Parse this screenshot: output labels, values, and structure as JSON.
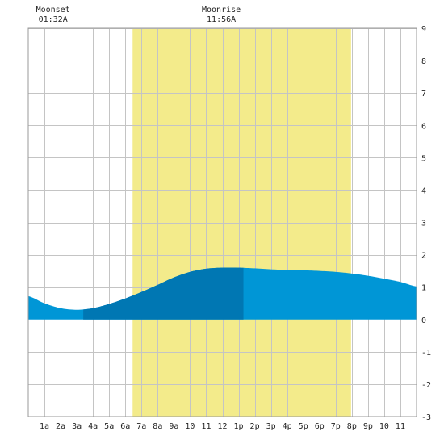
{
  "chart_data": {
    "type": "area",
    "title": "",
    "xlabel": "",
    "ylabel": "",
    "x_unit": "hour of day",
    "xlim": [
      0,
      24
    ],
    "ylim": [
      -3,
      9
    ],
    "grid": true,
    "x_tick_labels": [
      "1a",
      "2a",
      "3a",
      "4a",
      "5a",
      "6a",
      "7a",
      "8a",
      "9a",
      "10",
      "11",
      "12",
      "1p",
      "2p",
      "3p",
      "4p",
      "5p",
      "6p",
      "7p",
      "8p",
      "9p",
      "10",
      "11"
    ],
    "x_tick_values": [
      1,
      2,
      3,
      4,
      5,
      6,
      7,
      8,
      9,
      10,
      11,
      12,
      13,
      14,
      15,
      16,
      17,
      18,
      19,
      20,
      21,
      22,
      23
    ],
    "y_tick_values": [
      -3,
      -2,
      -1,
      0,
      1,
      2,
      3,
      4,
      5,
      6,
      7,
      8,
      9
    ],
    "daylight": {
      "start": 6.45,
      "end": 19.95,
      "color": "#f3eb8b"
    },
    "highlight_band": {
      "start": 3.4,
      "end": 13.3,
      "color": "#0077b3"
    },
    "tide_color": "#0096d6",
    "series": [
      {
        "x": [
          0,
          1,
          2,
          3,
          4,
          5,
          6,
          7,
          8,
          9,
          10,
          11,
          12,
          13,
          14,
          15,
          16,
          17,
          18,
          19,
          20,
          21,
          22,
          23,
          24
        ],
        "values": [
          0.72,
          0.5,
          0.35,
          0.3,
          0.35,
          0.48,
          0.65,
          0.85,
          1.07,
          1.3,
          1.47,
          1.57,
          1.6,
          1.6,
          1.58,
          1.55,
          1.53,
          1.52,
          1.5,
          1.47,
          1.42,
          1.35,
          1.26,
          1.16,
          1.02
        ]
      }
    ],
    "events": [
      {
        "label": "Moonset",
        "time": "01:32A",
        "x": 1.53
      },
      {
        "label": "Moonrise",
        "time": "11:56A",
        "x": 11.93
      }
    ]
  }
}
